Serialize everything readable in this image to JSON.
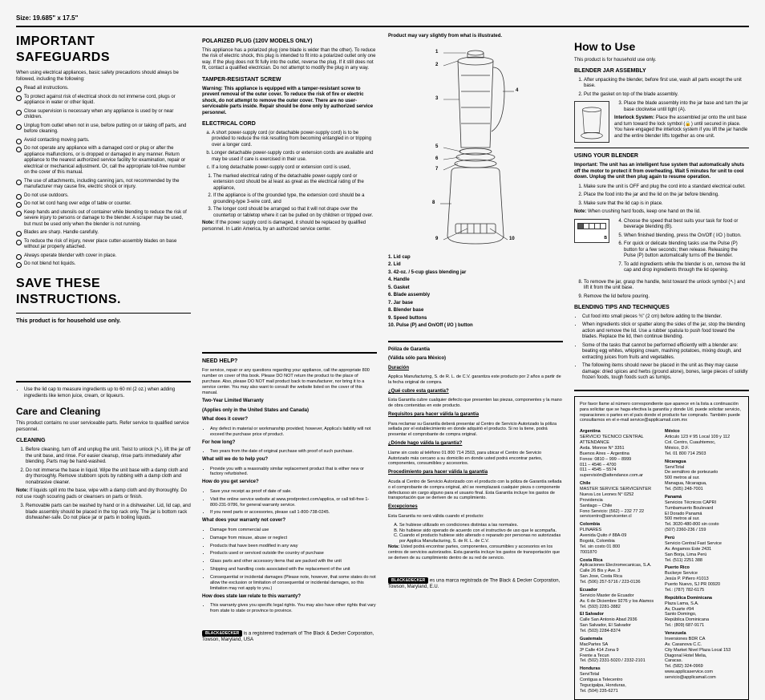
{
  "meta": {
    "size_label": "Size: 19.685\" x 17.5\""
  },
  "col1": {
    "h1": "IMPORTANT SAFEGUARDS",
    "intro": "When using electrical appliances, basic safety precautions should always be followed, including the following:",
    "safeguards": [
      "Read all instructions.",
      "To protect against risk of electrical shock do not immerse cord, plugs or appliance in water or other liquid.",
      "Close supervision is necessary when any appliance is used by or near children.",
      "Unplug from outlet when not in use, before putting on or taking off parts, and before cleaning.",
      "Avoid contacting moving parts.",
      "Do not operate any appliance with a damaged cord or plug or after the appliance malfunctions, or is dropped or damaged in any manner. Return appliance to the nearest authorized service facility for examination, repair or electrical or mechanical adjustment. Or, call the appropriate toll-free number on the cover of this manual.",
      "The use of attachments, including canning jars, not recommended by the manufacturer may cause fire, electric shock or injury.",
      "Do not use outdoors.",
      "Do not let cord hang over edge of table or counter.",
      "Keep hands and utensils out of container while blending to reduce the risk of severe injury to persons or damage to the blender. A scraper may be used, but must be used only when the blender is not running.",
      "Blades are sharp. Handle carefully.",
      "To reduce the risk of injury, never place cutter-assembly blades on base without jar properly attached.",
      "Always operate blender with cover in place.",
      "Do not blend hot liquids."
    ],
    "save_h1": "SAVE THESE INSTRUCTIONS.",
    "save_sub": "This product is for household use only.",
    "lidcap_bullet": "Use the lid cap to measure ingredients up to 60 ml (2 oz.) when adding ingredients like lemon juice, cream, or liqueurs.",
    "care_h2": "Care and Cleaning",
    "care_intro": "This product contains no user serviceable parts. Refer service to qualified service personnel.",
    "cleaning_head": "CLEANING",
    "cleaning_steps": [
      "Before cleaning, turn off and unplug the unit. Twist to unlock (↖), lift the jar off the unit base, and rinse. For easier cleanup, rinse parts immediately after blending. Parts may be hand-washed.",
      "Do not immerse the base in liquid. Wipe the unit base with a damp cloth and dry thoroughly. Remove stubborn spots by rubbing with a damp cloth and nonabrasive cleaner."
    ],
    "cleaning_note": "Note: If liquids spill into the base, wipe with a damp cloth and dry thoroughly. Do not use rough scouring pads or cleansers on parts or finish.",
    "cleaning_step3": "Removable parts can be washed by hand or in a dishwasher. Lid, lid cap, and blade assembly should be placed in the top rack only. The jar is bottom rack dishwasher-safe. Do not place jar or parts in boiling liquids."
  },
  "col2": {
    "plug_head": "POLARIZED PLUG (120V Models Only)",
    "plug_body": "This appliance has a polarized plug (one blade is wider than the other). To reduce the risk of electric shock, this plug is intended to fit into a polarized outlet only one way. If the plug does not fit fully into the outlet, reverse the plug. If it still does not fit, contact a qualified electrician. Do not attempt to modify the plug in any way.",
    "tamper_head": "TAMPER-RESISTANT SCREW",
    "tamper_body": "Warning: This appliance is equipped with a tamper-resistant screw to prevent removal of the outer cover. To reduce the risk of fire or electric shock, do not attempt to remove the outer cover. There are no user-serviceable parts inside. Repair should be done only by authorized service personnel.",
    "cord_head": "ELECTRICAL CORD",
    "cord_items": [
      "A short power-supply cord (or detachable power-supply cord) is to be provided to reduce the risk resulting from becoming entangled in or tripping over a longer cord.",
      "Longer detachable power-supply cords or extension cords are available and may be used if care is exercised in their use.",
      "If a long detachable power-supply cord or extension cord is used,"
    ],
    "cord_sub": [
      "The marked electrical rating of the detachable power-supply cord or extension cord should be at least as great as the electrical rating of the appliance,",
      "If the appliance is of the grounded type, the extension cord should be a grounding-type 3-wire cord, and",
      "The longer cord should be arranged so that it will not drape over the countertop or tabletop where it can be pulled on by children or tripped over."
    ],
    "cord_note": "Note: If the power supply cord is damaged, it should be replaced by qualified personnel. In Latin America, by an authorized service center.",
    "help_head": "NEED HELP?",
    "help_body": "For service, repair or any questions regarding your appliance, call the appropriate 800 number on cover of this book. Please DO NOT return the product to the place of purchase. Also, please DO NOT mail product back to manufacturer, nor bring it to a service center. You may also want to consult the website listed on the cover of this manual.",
    "warr_head": "Two-Year Limited Warranty",
    "warr_region": "(Applies only in the United States and Canada)",
    "q1": "What does it cover?",
    "a1": "Any defect in material or workmanship provided; however, Applica's liability will not exceed the purchase price of product.",
    "q2": "For how long?",
    "a2": "Two years from the date of original purchase with proof of such purchase.",
    "q3": "What will we do to help you?",
    "a3": "Provide you with a reasonably similar replacement product that is either new or factory refurbished.",
    "q4": "How do you get service?",
    "a4_items": [
      "Save your receipt as proof of date of sale.",
      "Visit the online service website at www.prodprotect.com/applica, or call toll-free 1-800-231-9786, for general warranty service.",
      "If you need parts or accessories, please call 1-800-738-0245."
    ],
    "q5": "What does your warranty not cover?",
    "a5_items": [
      "Damage from commercial use",
      "Damage from misuse, abuse or neglect",
      "Products that have been modified in any way",
      "Products used or serviced outside the country of purchase",
      "Glass parts and other accessory items that are packed with the unit",
      "Shipping and handling costs associated with the replacement of the unit",
      "Consequential or incidental damages (Please note, however, that some states do not allow the exclusion or limitation of consequential or incidental damages, so this limitation may not apply to you.)"
    ],
    "q6": "How does state law relate to this warranty?",
    "a6": "This warranty gives you specific legal rights. You may also have other rights that vary from state to state or province to province.",
    "trademark": "is a registered trademark of The Black & Decker Corporation, Towson, Maryland, USA"
  },
  "col3": {
    "vary_note": "Product may vary slightly from what is illustrated.",
    "parts": [
      "1. Lid cap",
      "2. Lid",
      "3. 42-oz. / 5-cup glass blending jar",
      "4. Handle",
      "5. Gasket",
      "6. Blade assembly",
      "7. Jar base",
      "8. Blender base",
      "9. Speed buttons",
      "10. Pulse (P) and On/Off ( I/O ) button"
    ],
    "poliza_head": "Póliza de Garantía",
    "poliza_sub": "(Válida sólo para México)",
    "duracion_head": "Duración",
    "duracion_body": "Applica Manufacturing, S. de R. L. de C.V. garantiza este producto por 2 años a partir de la fecha original de compra.",
    "cubre_head": "¿Qué cubre esta garantía?",
    "cubre_body": "Esta Garantía cubre cualquier defecto que presenten las piezas, componentes y la mano de obra contenidas en este producto.",
    "req_head": "Requisitos para hacer válida la garantía",
    "req_body": "Para reclamar su Garantía deberá presentar al Centro de Servicio Autorizado la póliza sellada por el establecimiento en donde adquirió el producto. Si no la tiene, podrá presentar el comprobante de compra original.",
    "donde_head": "¿Dónde hago válida la garantía?",
    "donde_body": "Llame sin costo al teléfono 01 800 714 2503, para ubicar el Centro de Servicio Autorizado más cercano a su domicilio en donde usted podrá encontrar partes, componentes, consumibles y accesorios.",
    "proc_head": "Procedimiento para hacer válida la garantía",
    "proc_body": "Acuda al Centro de Servicio Autorizado con el producto con la póliza de Garantía sellada o el comprobante de compra original, ahí se reemplazará cualquier pieza o componente defectuoso sin cargo alguno para el usuario final. Esta Garantía incluye los gastos de transportación que se deriven de su cumplimiento.",
    "exc_head": "Excepciones",
    "exc_intro": "Esta Garantía no será válida cuando el producto:",
    "exc_items": [
      "Se hubiese utilizado en condiciones distintas a las normales.",
      "No hubiese sido operado de acuerdo con el instructivo de uso que le acompaña.",
      "Cuando el producto hubiese sido alterado o reparado por personas no autorizadas por Applica Manufacturing, S. de R. L. de C.V."
    ],
    "exc_note": "Nota: Usted podrá encontrar partes, componentes, consumibles y accesorios en los centros de servicios autorizados. Esta garantía incluye los gastos de transportación que se deriven de su cumplimiento dentro de su red de servicio.",
    "marca": "es una marca registrada de The Black & Decker Corporation, Towson, Maryland, E.U."
  },
  "col4": {
    "h2": "How to Use",
    "sub": "This product is for household use only.",
    "assem_head": "BLENDER JAR ASSEMBLY",
    "assem_steps_a": [
      "After unpacking the blender, before first use, wash all parts except the unit base.",
      "Put the gasket on top of the blade assembly."
    ],
    "assem_step3": "Place the blade assembly into the jar base and turn the jar base clockwise until tight (A).",
    "interlock_head": "Interlock System:",
    "interlock_body": "Place the assembled jar onto the unit base and turn toward the lock symbol (🔒) until secured in place. You have engaged the interlock system if you lift the jar handle and the entire blender lifts together as one unit.",
    "using_head": "USING YOUR BLENDER",
    "using_important": "Important: The unit has an intelligent fuse system that automatically shuts off the motor to protect it from overheating. Wait 5 minutes for unit to cool down. Unplug the unit then plug again to resume operation.",
    "using_steps_a": [
      "Make sure the unit is OFF and plug the cord into a standard electrical outlet.",
      "Place the food into the jar and the lid on the jar before blending.",
      "Make sure that the lid cap is in place."
    ],
    "using_note1": "Note: When crushing hard foods, keep one hand on the lid.",
    "using_step4": "Choose the speed that best suits your task for food or beverage blending (B).",
    "using_step5": "When finished blending, press the On/Off ( I/O ) button.",
    "using_step6": "For quick or delicate blending tasks use the Pulse (P) button for a few seconds; then release. Releasing the Pulse (P) button automatically turns off the blender.",
    "using_step7": "To add ingredients while the blender is on, remove the lid cap and drop ingredients through the lid opening.",
    "using_step8": "To remove the jar, grasp the handle, twist toward the unlock symbol (↖) and lift it from the unit base.",
    "using_step9": "Remove the lid before pouring.",
    "tips_head": "BLENDING TIPS AND TECHNIQUES",
    "tips": [
      "Cut food into small pieces ¾\" (2 cm) before adding to the blender.",
      "When ingredients stick or spatter along the sides of the jar, stop the blending action and remove the lid. Use a rubber spatula to push food toward the blades. Replace the lid, then continue blending.",
      "Some of the tasks that cannot be performed efficiently with a blender are: beating egg whites, whipping cream, mashing potatoes, mixing dough, and extracting juices from fruits and vegetables.",
      "The following items should never be placed in the unit as they may cause damage: dried spices and herbs (ground alone), bones, large pieces of solidly frozen foods, tough foods such as turnips."
    ],
    "svc_intro": "Por favor llame al número correspondiente que aparece en la lista a continuación para solicitar que se haga efectiva la garantía y donde Ud. puede solicitar servicio, reparaciones o partes en el país donde el producto fue comprado. También puede consultarnos en el e-mail service@applicamail.com.mx",
    "svc_left": [
      {
        "c": "Argentina",
        "b": "SERVICIO TECNICO CENTRAL\nATTENDANCE\nAvda. Monroe N° 3351\nBuenos Aires – Argentina\nFonos: 0810 – 999 – 8999\n011 – 4546 – 4700\n011 – 4545 – 5574\nsupervisión@attendance.com.ar"
      },
      {
        "c": "Chile",
        "b": "MASTER SERVICE SERVICENTER\nNueva Los Leones N° 0252\nProvidencia\nSantiago – Chile\nFono Servicio: (562) – 232 77 22\nservicentro@servicenter.cl"
      },
      {
        "c": "Colombia",
        "b": "PLINARES\nAvenida Quito # 88A-09\nBogotá, Colombia\nTel. sin costo 01 800\n7001870"
      },
      {
        "c": "Costa Rica",
        "b": "Aplicaciones Electromecanicas, S.A.\nCalle 26 Bis y Ave. 3\nSan Jose, Costa Rica\nTel. (506) 257-5716 / 223-0136"
      },
      {
        "c": "Ecuador",
        "b": "Servicio Master de Ecuador\nAv. 6 de Diciembre 9276 y los Alamos\nTel. (593) 2281-3882"
      },
      {
        "c": "El Salvador",
        "b": "Calle San Antonio Abad 2936\nSan Salvador, El Salvador\nTel. (503) 2284-8374"
      },
      {
        "c": "Guatemala",
        "b": "MacPartes SA\n3ª Calle 414 Zona 9\nFrente a Tecun\nTel. (502) 2331-5020 / 2332-2101"
      },
      {
        "c": "Honduras",
        "b": "ServiTotal\nContigua a Telecentro\nTegucigalpa, Honduras,\nTel. (504) 235-6271"
      }
    ],
    "svc_right": [
      {
        "c": "México",
        "b": "Articulo 123 # 95 Local 109 y 112\nCol. Centro, Cuauhtemoc,\nMéxico, D.F.\nTel. 01 800 714 2503"
      },
      {
        "c": "Nicaragua",
        "b": "ServiTotal\nDe semáforo de portezuelo\n500 metros al sur.\nManagua, Nicaragua,\nTel. (505) 248-7001"
      },
      {
        "c": "Panamá",
        "b": "Servicios Técnicos CAPRI\nTumbamuerto Boulevard\nEl Dorado Panamá\n500 metros al sur.\nTel. 3020-480-800 sin costo\n(507) 2360-236 / 159"
      },
      {
        "c": "Perú",
        "b": "Servicio Central Fast Service\nAv. Angamos Este 2431\nSan Borja, Lima Perú\nTel. (511) 2251 388"
      },
      {
        "c": "Puerto Rico",
        "b": "Buckeye Service\nJesús P. Piñero #1013\nPuerto Nuevo, SJ PR 00920\nTel.: (787) 782-6175"
      },
      {
        "c": "República Dominicana",
        "b": "Plaza Lama, S.A.\nAv, Duarte #94\nSanto Domingo,\nRepública Dominicana\nTel.: (809) 687-9171"
      },
      {
        "c": "Venezuela",
        "b": "Inversiones BDR CA\nAv. Casanova C.C.\nCity Market Nivel Plaza Local 153\nDiagonal Hotel Melia,\nCaracas.\nTel. (582) 324-0969"
      },
      {
        "c": "",
        "b": "www.applicaservice.com\nservicio@applicamail.com"
      }
    ]
  }
}
